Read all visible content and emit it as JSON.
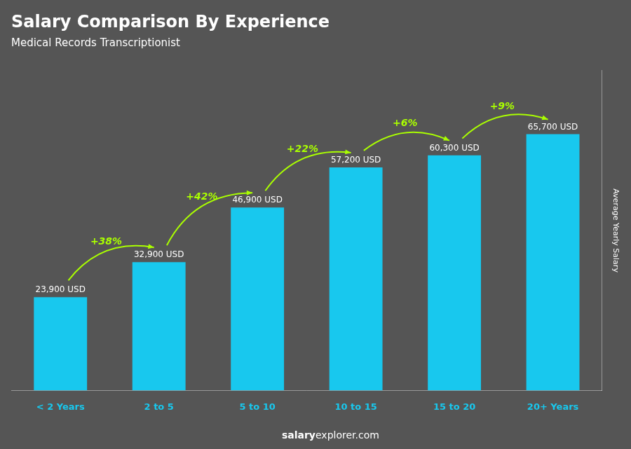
{
  "chart_data": {
    "type": "bar",
    "title": "Salary Comparison By Experience",
    "subtitle": "Medical Records Transcriptionist",
    "categories": [
      "< 2 Years",
      "2 to 5",
      "5 to 10",
      "10 to 15",
      "15 to 20",
      "20+ Years"
    ],
    "values": [
      23900,
      32900,
      46900,
      57200,
      60300,
      65700
    ],
    "value_labels": [
      "23,900 USD",
      "32,900 USD",
      "46,900 USD",
      "57,200 USD",
      "60,300 USD",
      "65,700 USD"
    ],
    "data_labels": true,
    "color": "#18C8EE",
    "y_label": "Average Yearly Salary",
    "ylim": [
      0,
      82000
    ],
    "tick_labels": "x",
    "grid": false,
    "annotations": [
      "+38%",
      "+42%",
      "+22%",
      "+6%",
      "+9%"
    ],
    "footer": [
      "salary",
      "explorer.com"
    ]
  }
}
